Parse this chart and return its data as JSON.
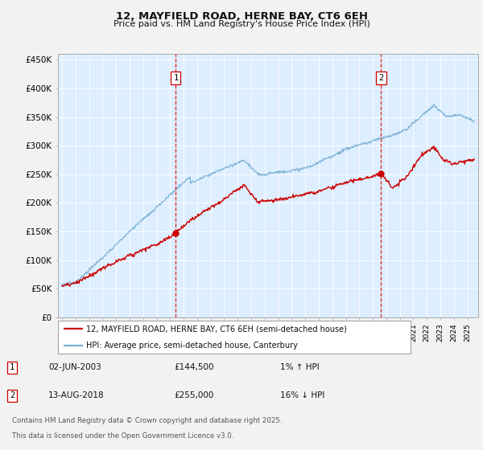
{
  "title": "12, MAYFIELD ROAD, HERNE BAY, CT6 6EH",
  "subtitle": "Price paid vs. HM Land Registry's House Price Index (HPI)",
  "background_color": "#f2f2f2",
  "plot_bg_color": "#ddeeff",
  "ylim": [
    0,
    460000
  ],
  "yticks": [
    0,
    50000,
    100000,
    150000,
    200000,
    250000,
    300000,
    350000,
    400000,
    450000
  ],
  "ytick_labels": [
    "£0",
    "£50K",
    "£100K",
    "£150K",
    "£200K",
    "£250K",
    "£300K",
    "£350K",
    "£400K",
    "£450K"
  ],
  "xlim_start": 1994.7,
  "xlim_end": 2025.8,
  "annotations": [
    {
      "num": "1",
      "year": 2003.42,
      "price": 144500
    },
    {
      "num": "2",
      "year": 2018.62,
      "price": 255000
    }
  ],
  "legend_entries": [
    {
      "label": "12, MAYFIELD ROAD, HERNE BAY, CT6 6EH (semi-detached house)",
      "color": "#cc0000",
      "lw": 1.5
    },
    {
      "label": "HPI: Average price, semi-detached house, Canterbury",
      "color": "#7ab0d4",
      "lw": 1.5
    }
  ],
  "footer_lines": [
    "Contains HM Land Registry data © Crown copyright and database right 2025.",
    "This data is licensed under the Open Government Licence v3.0."
  ],
  "annotation_table": [
    {
      "num": "1",
      "date": "02-JUN-2003",
      "price": "£144,500",
      "hpi": "1% ↑ HPI"
    },
    {
      "num": "2",
      "date": "13-AUG-2018",
      "price": "£255,000",
      "hpi": "16% ↓ HPI"
    }
  ],
  "sale_points": [
    {
      "year": 2003.42,
      "price": 144500
    },
    {
      "year": 2018.62,
      "price": 255000
    }
  ]
}
